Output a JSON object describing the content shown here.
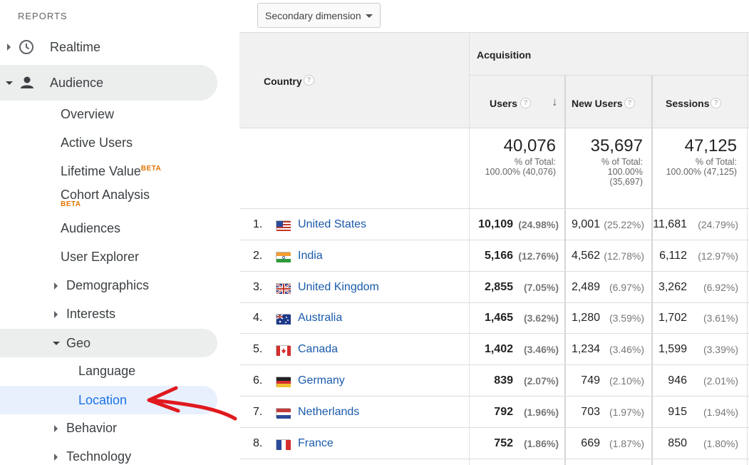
{
  "sidebar": {
    "section_title": "REPORTS",
    "realtime": "Realtime",
    "audience": "Audience",
    "overview": "Overview",
    "active_users": "Active Users",
    "lifetime_value": "Lifetime Value",
    "beta": "BETA",
    "cohort_analysis": "Cohort Analysis",
    "audiences": "Audiences",
    "user_explorer": "User Explorer",
    "demographics": "Demographics",
    "interests": "Interests",
    "geo": "Geo",
    "language": "Language",
    "location": "Location",
    "behavior": "Behavior",
    "technology": "Technology"
  },
  "toolbar": {
    "secondary_dimension": "Secondary dimension"
  },
  "table": {
    "country_header": "Country",
    "acquisition_header": "Acquisition",
    "help_glyph": "?",
    "sort_arrow": "↓",
    "columns": [
      "Users",
      "New Users",
      "Sessions"
    ],
    "totals": [
      {
        "value": "40,076",
        "label": "% of Total:",
        "pct": "100.00% (40,076)"
      },
      {
        "value": "35,697",
        "label": "% of Total:",
        "pct1": "100.00%",
        "pct2": "(35,697)"
      },
      {
        "value": "47,125",
        "label": "% of Total:",
        "pct": "100.00% (47,125)"
      }
    ],
    "rows": [
      {
        "idx": "1.",
        "country": "United States",
        "users": "10,109",
        "users_pct": "(24.98%)",
        "new": "9,001",
        "new_pct": "(25.22%)",
        "sess": "11,681",
        "sess_pct": "(24.79%)"
      },
      {
        "idx": "2.",
        "country": "India",
        "users": "5,166",
        "users_pct": "(12.76%)",
        "new": "4,562",
        "new_pct": "(12.78%)",
        "sess": "6,112",
        "sess_pct": "(12.97%)"
      },
      {
        "idx": "3.",
        "country": "United Kingdom",
        "users": "2,855",
        "users_pct": "(7.05%)",
        "new": "2,489",
        "new_pct": "(6.97%)",
        "sess": "3,262",
        "sess_pct": "(6.92%)"
      },
      {
        "idx": "4.",
        "country": "Australia",
        "users": "1,465",
        "users_pct": "(3.62%)",
        "new": "1,280",
        "new_pct": "(3.59%)",
        "sess": "1,702",
        "sess_pct": "(3.61%)"
      },
      {
        "idx": "5.",
        "country": "Canada",
        "users": "1,402",
        "users_pct": "(3.46%)",
        "new": "1,234",
        "new_pct": "(3.46%)",
        "sess": "1,599",
        "sess_pct": "(3.39%)"
      },
      {
        "idx": "6.",
        "country": "Germany",
        "users": "839",
        "users_pct": "(2.07%)",
        "new": "749",
        "new_pct": "(2.10%)",
        "sess": "946",
        "sess_pct": "(2.01%)"
      },
      {
        "idx": "7.",
        "country": "Netherlands",
        "users": "792",
        "users_pct": "(1.96%)",
        "new": "703",
        "new_pct": "(1.97%)",
        "sess": "915",
        "sess_pct": "(1.94%)"
      },
      {
        "idx": "8.",
        "country": "France",
        "users": "752",
        "users_pct": "(1.86%)",
        "new": "669",
        "new_pct": "(1.87%)",
        "sess": "850",
        "sess_pct": "(1.80%)"
      }
    ]
  },
  "colors": {
    "link": "#1a5aab",
    "active": "#1a73e8",
    "annotation_arrow": "#e0191e",
    "beta": "#e37400"
  }
}
